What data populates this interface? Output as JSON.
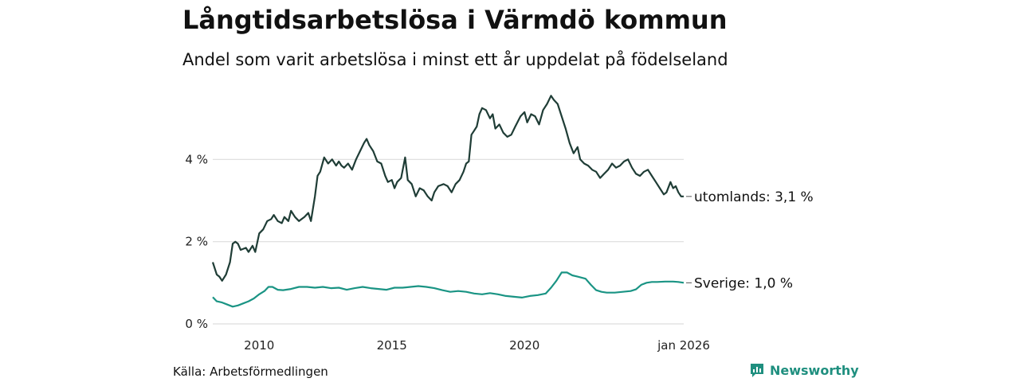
{
  "title": "Långtidsarbetslösa i Värmdö kommun",
  "subtitle": "Andel som varit arbetslösa i minst ett år uppdelat på födelseland",
  "source": "Källa: Arbetsförmedlingen",
  "brand": "Newsworthy",
  "colors": {
    "utomlands": "#1f3d36",
    "sverige": "#1a9484",
    "grid": "#dddddd",
    "brand": "#1f8f7f"
  },
  "chart_data": {
    "type": "line",
    "x_range": [
      2008.25,
      2026.0
    ],
    "ylim": [
      0,
      6
    ],
    "yticks": [
      0,
      2,
      4
    ],
    "ytick_labels": [
      "0 %",
      "2 %",
      "4 %"
    ],
    "xticks": [
      2010,
      2015,
      2020,
      2026
    ],
    "xtick_labels": [
      "2010",
      "2015",
      "2020",
      "jan 2026"
    ],
    "series": [
      {
        "name": "utomlands",
        "end_label": "utomlands: 3,1 %",
        "points": [
          [
            2008.25,
            1.5
          ],
          [
            2008.4,
            1.2
          ],
          [
            2008.5,
            1.15
          ],
          [
            2008.6,
            1.05
          ],
          [
            2008.75,
            1.2
          ],
          [
            2008.9,
            1.5
          ],
          [
            2009.0,
            1.95
          ],
          [
            2009.1,
            2.0
          ],
          [
            2009.2,
            1.95
          ],
          [
            2009.3,
            1.8
          ],
          [
            2009.5,
            1.85
          ],
          [
            2009.6,
            1.75
          ],
          [
            2009.75,
            1.9
          ],
          [
            2009.85,
            1.75
          ],
          [
            2010.0,
            2.2
          ],
          [
            2010.15,
            2.3
          ],
          [
            2010.3,
            2.5
          ],
          [
            2010.45,
            2.55
          ],
          [
            2010.55,
            2.65
          ],
          [
            2010.7,
            2.5
          ],
          [
            2010.85,
            2.45
          ],
          [
            2010.95,
            2.6
          ],
          [
            2011.1,
            2.5
          ],
          [
            2011.2,
            2.75
          ],
          [
            2011.35,
            2.6
          ],
          [
            2011.5,
            2.5
          ],
          [
            2011.6,
            2.55
          ],
          [
            2011.7,
            2.6
          ],
          [
            2011.85,
            2.7
          ],
          [
            2011.95,
            2.5
          ],
          [
            2012.1,
            3.1
          ],
          [
            2012.2,
            3.6
          ],
          [
            2012.3,
            3.7
          ],
          [
            2012.45,
            4.05
          ],
          [
            2012.6,
            3.9
          ],
          [
            2012.75,
            4.0
          ],
          [
            2012.9,
            3.85
          ],
          [
            2013.0,
            3.95
          ],
          [
            2013.1,
            3.85
          ],
          [
            2013.2,
            3.8
          ],
          [
            2013.35,
            3.9
          ],
          [
            2013.5,
            3.75
          ],
          [
            2013.65,
            4.0
          ],
          [
            2013.8,
            4.2
          ],
          [
            2013.95,
            4.4
          ],
          [
            2014.05,
            4.5
          ],
          [
            2014.15,
            4.35
          ],
          [
            2014.3,
            4.2
          ],
          [
            2014.45,
            3.95
          ],
          [
            2014.6,
            3.9
          ],
          [
            2014.75,
            3.6
          ],
          [
            2014.85,
            3.45
          ],
          [
            2015.0,
            3.5
          ],
          [
            2015.1,
            3.3
          ],
          [
            2015.2,
            3.45
          ],
          [
            2015.35,
            3.55
          ],
          [
            2015.5,
            4.05
          ],
          [
            2015.6,
            3.5
          ],
          [
            2015.75,
            3.4
          ],
          [
            2015.9,
            3.1
          ],
          [
            2016.05,
            3.3
          ],
          [
            2016.2,
            3.25
          ],
          [
            2016.35,
            3.1
          ],
          [
            2016.5,
            3.0
          ],
          [
            2016.6,
            3.2
          ],
          [
            2016.75,
            3.35
          ],
          [
            2016.95,
            3.4
          ],
          [
            2017.1,
            3.35
          ],
          [
            2017.25,
            3.2
          ],
          [
            2017.4,
            3.4
          ],
          [
            2017.55,
            3.5
          ],
          [
            2017.7,
            3.7
          ],
          [
            2017.8,
            3.9
          ],
          [
            2017.9,
            3.95
          ],
          [
            2018.0,
            4.6
          ],
          [
            2018.1,
            4.7
          ],
          [
            2018.2,
            4.8
          ],
          [
            2018.3,
            5.1
          ],
          [
            2018.4,
            5.25
          ],
          [
            2018.55,
            5.2
          ],
          [
            2018.7,
            5.0
          ],
          [
            2018.8,
            5.1
          ],
          [
            2018.9,
            4.75
          ],
          [
            2019.05,
            4.85
          ],
          [
            2019.2,
            4.65
          ],
          [
            2019.35,
            4.55
          ],
          [
            2019.5,
            4.6
          ],
          [
            2019.65,
            4.8
          ],
          [
            2019.85,
            5.05
          ],
          [
            2020.0,
            5.15
          ],
          [
            2020.1,
            4.9
          ],
          [
            2020.25,
            5.1
          ],
          [
            2020.4,
            5.05
          ],
          [
            2020.55,
            4.85
          ],
          [
            2020.7,
            5.2
          ],
          [
            2020.85,
            5.35
          ],
          [
            2021.0,
            5.55
          ],
          [
            2021.1,
            5.45
          ],
          [
            2021.25,
            5.35
          ],
          [
            2021.4,
            5.05
          ],
          [
            2021.55,
            4.75
          ],
          [
            2021.7,
            4.4
          ],
          [
            2021.85,
            4.15
          ],
          [
            2022.0,
            4.3
          ],
          [
            2022.1,
            4.0
          ],
          [
            2022.25,
            3.9
          ],
          [
            2022.4,
            3.85
          ],
          [
            2022.55,
            3.75
          ],
          [
            2022.7,
            3.7
          ],
          [
            2022.85,
            3.55
          ],
          [
            2023.0,
            3.65
          ],
          [
            2023.15,
            3.75
          ],
          [
            2023.3,
            3.9
          ],
          [
            2023.45,
            3.8
          ],
          [
            2023.6,
            3.85
          ],
          [
            2023.75,
            3.95
          ],
          [
            2023.9,
            4.0
          ],
          [
            2024.05,
            3.8
          ],
          [
            2024.2,
            3.65
          ],
          [
            2024.35,
            3.6
          ],
          [
            2024.5,
            3.7
          ],
          [
            2024.65,
            3.75
          ],
          [
            2024.8,
            3.6
          ],
          [
            2024.95,
            3.45
          ],
          [
            2025.1,
            3.3
          ],
          [
            2025.25,
            3.15
          ],
          [
            2025.35,
            3.2
          ],
          [
            2025.5,
            3.45
          ],
          [
            2025.6,
            3.3
          ],
          [
            2025.7,
            3.35
          ],
          [
            2025.8,
            3.2
          ],
          [
            2025.9,
            3.1
          ],
          [
            2026.0,
            3.1
          ]
        ]
      },
      {
        "name": "Sverige",
        "end_label": "Sverige: 1,0 %",
        "points": [
          [
            2008.25,
            0.65
          ],
          [
            2008.4,
            0.55
          ],
          [
            2008.6,
            0.52
          ],
          [
            2008.8,
            0.47
          ],
          [
            2009.0,
            0.42
          ],
          [
            2009.2,
            0.45
          ],
          [
            2009.4,
            0.5
          ],
          [
            2009.6,
            0.55
          ],
          [
            2009.8,
            0.62
          ],
          [
            2010.0,
            0.72
          ],
          [
            2010.2,
            0.8
          ],
          [
            2010.35,
            0.9
          ],
          [
            2010.5,
            0.9
          ],
          [
            2010.7,
            0.83
          ],
          [
            2010.9,
            0.82
          ],
          [
            2011.2,
            0.85
          ],
          [
            2011.5,
            0.9
          ],
          [
            2011.8,
            0.9
          ],
          [
            2012.1,
            0.88
          ],
          [
            2012.4,
            0.9
          ],
          [
            2012.7,
            0.87
          ],
          [
            2013.0,
            0.88
          ],
          [
            2013.3,
            0.83
          ],
          [
            2013.6,
            0.87
          ],
          [
            2013.9,
            0.9
          ],
          [
            2014.2,
            0.87
          ],
          [
            2014.5,
            0.85
          ],
          [
            2014.8,
            0.83
          ],
          [
            2015.1,
            0.88
          ],
          [
            2015.4,
            0.88
          ],
          [
            2015.7,
            0.9
          ],
          [
            2016.0,
            0.92
          ],
          [
            2016.3,
            0.9
          ],
          [
            2016.6,
            0.87
          ],
          [
            2016.9,
            0.82
          ],
          [
            2017.2,
            0.78
          ],
          [
            2017.5,
            0.8
          ],
          [
            2017.8,
            0.78
          ],
          [
            2018.1,
            0.74
          ],
          [
            2018.4,
            0.72
          ],
          [
            2018.7,
            0.75
          ],
          [
            2019.0,
            0.72
          ],
          [
            2019.3,
            0.68
          ],
          [
            2019.6,
            0.66
          ],
          [
            2019.9,
            0.64
          ],
          [
            2020.2,
            0.68
          ],
          [
            2020.5,
            0.7
          ],
          [
            2020.8,
            0.74
          ],
          [
            2021.0,
            0.88
          ],
          [
            2021.2,
            1.05
          ],
          [
            2021.4,
            1.25
          ],
          [
            2021.6,
            1.25
          ],
          [
            2021.8,
            1.18
          ],
          [
            2022.0,
            1.15
          ],
          [
            2022.3,
            1.1
          ],
          [
            2022.5,
            0.95
          ],
          [
            2022.7,
            0.82
          ],
          [
            2022.9,
            0.78
          ],
          [
            2023.1,
            0.76
          ],
          [
            2023.4,
            0.76
          ],
          [
            2023.7,
            0.78
          ],
          [
            2024.0,
            0.8
          ],
          [
            2024.2,
            0.84
          ],
          [
            2024.4,
            0.95
          ],
          [
            2024.6,
            1.0
          ],
          [
            2024.8,
            1.02
          ],
          [
            2025.0,
            1.02
          ],
          [
            2025.3,
            1.03
          ],
          [
            2025.6,
            1.03
          ],
          [
            2025.8,
            1.02
          ],
          [
            2026.0,
            1.0
          ]
        ]
      }
    ]
  }
}
